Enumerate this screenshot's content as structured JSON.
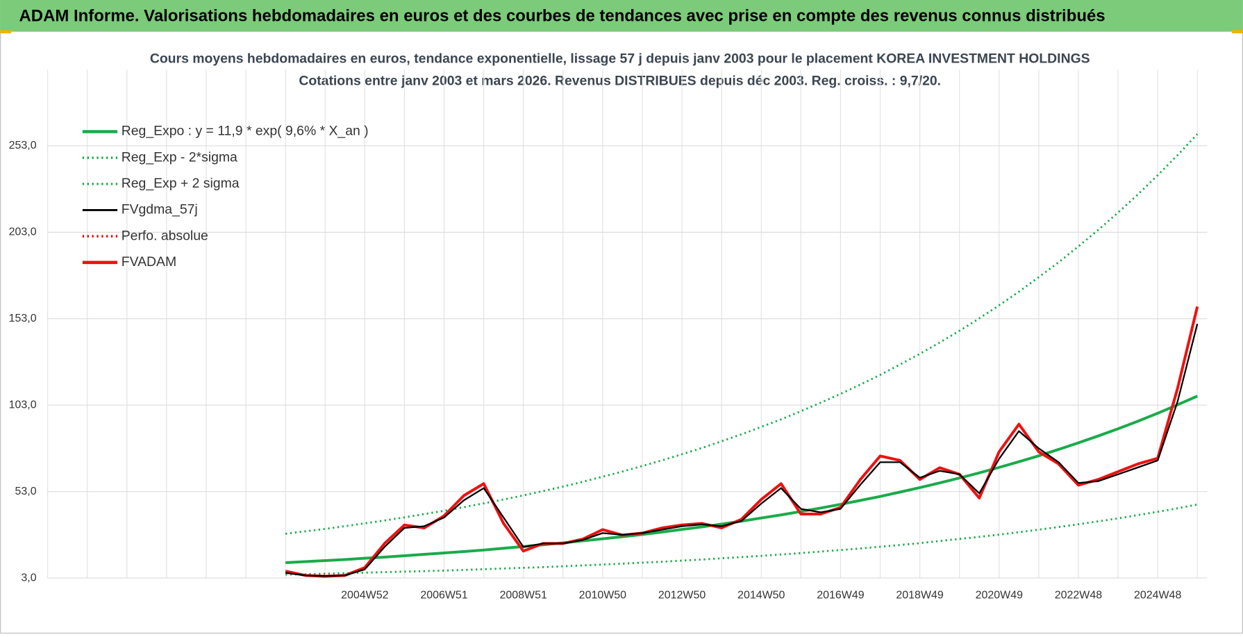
{
  "header": {
    "title": "ADAM Informe. Valorisations hebdomadaires en euros et des courbes de tendances avec prise en compte des revenus connus distribués"
  },
  "chart_data": {
    "type": "line",
    "title": "Cours moyens hebdomadaires en euros, tendance exponentielle, lissage 57 j depuis janv 2003 pour le placement KOREA INVESTMENT HOLDINGS",
    "subtitle": "Cotations entre janv 2003 et mars 2026. Revenus DISTRIBUES depuis déc 2003. Reg. croiss. : 9,7/20.",
    "categories": [
      null,
      null,
      null,
      null,
      null,
      null,
      null,
      null,
      null,
      null,
      null,
      null,
      null,
      null,
      null,
      null,
      "2004W52",
      null,
      null,
      null,
      "2006W51",
      null,
      null,
      null,
      "2008W51",
      null,
      null,
      null,
      "2010W50",
      null,
      null,
      null,
      "2012W50",
      null,
      null,
      null,
      "2014W50",
      null,
      null,
      null,
      "2016W49",
      null,
      null,
      null,
      "2018W49",
      null,
      null,
      null,
      "2020W49",
      null,
      null,
      null,
      "2022W48",
      null,
      null,
      null,
      "2024W48",
      null,
      null
    ],
    "ylim": [
      3,
      297
    ],
    "yticks": [
      {
        "value": 3,
        "label": "3,0"
      },
      {
        "value": 53,
        "label": "53,0"
      },
      {
        "value": 103,
        "label": "103,0"
      },
      {
        "value": 153,
        "label": "153,0"
      },
      {
        "value": 203,
        "label": "203,0"
      },
      {
        "value": 253,
        "label": "253,0"
      }
    ],
    "grid": true,
    "legend": "top-left",
    "series": [
      {
        "name": "Reg_Expo : y = 11,9 * exp( 9,6% *  X_an )",
        "color": "#1aab4a",
        "style": "thick",
        "values": [
          null,
          null,
          null,
          null,
          null,
          null,
          null,
          null,
          null,
          null,
          null,
          null,
          11.9,
          12.5,
          13.1,
          13.7,
          14.4,
          15.1,
          15.9,
          16.7,
          17.5,
          18.3,
          19.2,
          20.2,
          21.2,
          22.2,
          23.3,
          24.5,
          25.7,
          26.9,
          28.2,
          29.6,
          31.1,
          32.6,
          34.2,
          35.9,
          37.7,
          39.5,
          41.5,
          43.5,
          45.6,
          47.9,
          50.2,
          52.7,
          55.3,
          58.0,
          60.9,
          63.8,
          67.0,
          70.3,
          73.7,
          77.4,
          81.2,
          85.2,
          89.3,
          93.7,
          98.3,
          103.2,
          108.2
        ]
      },
      {
        "name": "Reg_Exp - 2*sigma",
        "color": "#1aab4a",
        "style": "dotted",
        "values": [
          null,
          null,
          null,
          null,
          null,
          null,
          null,
          null,
          null,
          null,
          null,
          null,
          5.0,
          5.2,
          5.5,
          5.8,
          6.1,
          6.4,
          6.7,
          7.0,
          7.3,
          7.7,
          8.1,
          8.5,
          8.9,
          9.3,
          9.8,
          10.3,
          10.8,
          11.3,
          11.9,
          12.4,
          13.1,
          13.7,
          14.4,
          15.1,
          15.8,
          16.6,
          17.4,
          18.3,
          19.2,
          20.1,
          21.1,
          22.1,
          23.2,
          24.4,
          25.6,
          26.8,
          28.1,
          29.5,
          31.0,
          32.5,
          34.1,
          35.8,
          37.5,
          39.4,
          41.3,
          43.3,
          45.5
        ]
      },
      {
        "name": "Reg_Exp + 2 sigma",
        "color": "#1aab4a",
        "style": "dotted",
        "values": [
          null,
          null,
          null,
          null,
          null,
          null,
          null,
          null,
          null,
          null,
          null,
          null,
          28.6,
          30.0,
          31.4,
          33.0,
          34.6,
          36.3,
          38.1,
          40.0,
          41.9,
          44.0,
          46.2,
          48.4,
          50.8,
          53.3,
          55.9,
          58.7,
          61.6,
          64.6,
          67.8,
          71.1,
          74.6,
          78.2,
          82.1,
          86.1,
          90.4,
          94.8,
          99.5,
          104.4,
          109.5,
          114.9,
          120.5,
          126.5,
          132.7,
          139.2,
          146.0,
          153.2,
          160.8,
          168.6,
          177.0,
          185.6,
          194.8,
          204.4,
          214.4,
          224.9,
          236.0,
          247.6,
          259.8
        ]
      },
      {
        "name": "FVgdma_57j",
        "color": "#000000",
        "style": "solid",
        "values": [
          null,
          null,
          null,
          null,
          null,
          null,
          null,
          null,
          null,
          null,
          null,
          null,
          6,
          4.5,
          4.2,
          4.5,
          8,
          21,
          32,
          33,
          38,
          48,
          55,
          38,
          21,
          23,
          23,
          25,
          29,
          28,
          29,
          31,
          33,
          34,
          33,
          36,
          46,
          55,
          43,
          41,
          43,
          57,
          70,
          70,
          61,
          65,
          63,
          52,
          72,
          88,
          78,
          70,
          58,
          59,
          63,
          67,
          71,
          105,
          150
        ]
      },
      {
        "name": "Perfo. absolue",
        "color": "#e00000",
        "style": "dotted",
        "values": [
          null,
          null,
          null,
          null,
          null,
          null,
          null,
          null,
          null,
          null,
          null,
          null,
          null,
          null,
          null,
          null,
          null,
          null,
          null,
          null,
          null,
          null,
          null,
          null,
          null,
          null,
          null,
          null,
          null,
          null,
          null,
          null,
          null,
          null,
          null,
          null,
          null,
          null,
          null,
          null,
          null,
          null,
          null,
          null,
          null,
          null,
          null,
          null,
          null,
          null,
          null,
          null,
          null,
          null,
          null,
          null,
          null,
          null,
          null
        ]
      },
      {
        "name": "FVADAM",
        "color": "#ee1111",
        "style": "thick",
        "values": [
          null,
          null,
          null,
          null,
          null,
          null,
          null,
          null,
          null,
          null,
          null,
          null,
          7,
          4.5,
          4,
          4.5,
          9,
          23,
          33.7,
          32,
          39,
          50.7,
          57.6,
          34.6,
          18.6,
          23,
          23,
          25.5,
          31,
          27.8,
          29,
          32,
          33.7,
          34.6,
          32,
          37,
          48.4,
          57.6,
          40,
          40,
          43.8,
          60,
          73.6,
          71,
          60,
          66.8,
          63,
          49.3,
          76,
          92,
          76,
          69,
          56.7,
          60,
          64.5,
          69,
          72.3,
          112.6,
          160
        ]
      }
    ]
  }
}
